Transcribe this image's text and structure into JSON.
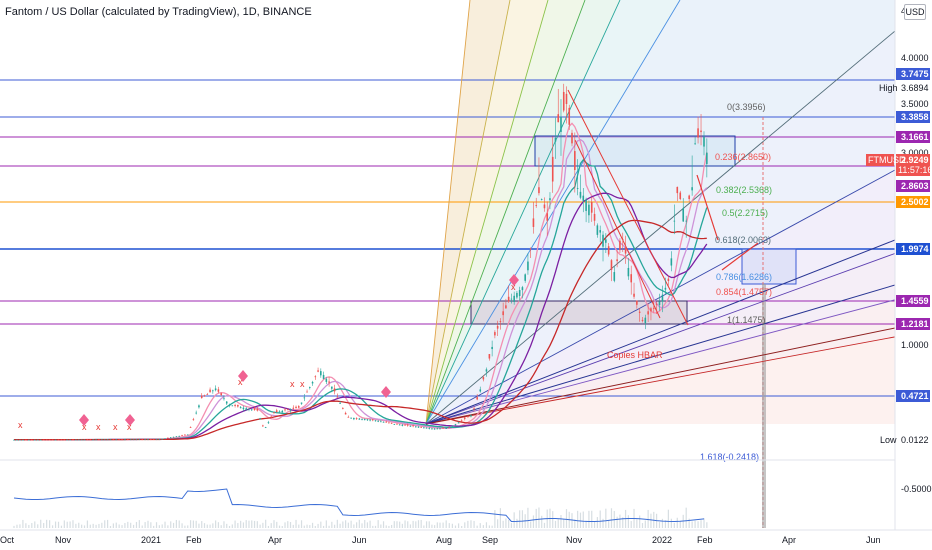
{
  "title": "Fantom / US Dollar (calculated by TradingView), 1D, BINANCE",
  "currency_button": "USD",
  "chart_data": {
    "type": "line",
    "symbol": "FTMUSD",
    "scale": "log",
    "current_price": 2.9249,
    "countdown": "11:57:16",
    "time_axis": [
      "Oct",
      "Nov",
      "2021",
      "Feb",
      "Apr",
      "Jun",
      "Aug",
      "Sep",
      "Nov",
      "2022",
      "Feb",
      "Apr",
      "Jun"
    ],
    "price_axis_ticks": [
      "4.",
      "4.0000",
      "3.6894",
      "3.5000",
      "3.0000",
      "1.0000",
      "0.0122",
      "-0.5000"
    ],
    "price_labels": [
      {
        "value": "3.7475",
        "color": "#3c5bd6"
      },
      {
        "value": "3.3858",
        "color": "#3c5bd6"
      },
      {
        "value": "3.1661",
        "color": "#9c27b0"
      },
      {
        "value": "2.9249",
        "color": "#ef5350"
      },
      {
        "value": "2.8603",
        "color": "#9c27b0"
      },
      {
        "value": "2.5002",
        "color": "#ff9800"
      },
      {
        "value": "1.9974",
        "color": "#1e50d2"
      },
      {
        "value": "1.4559",
        "color": "#9c27b0"
      },
      {
        "value": "1.2181",
        "color": "#9c27b0"
      },
      {
        "value": "0.4721",
        "color": "#3c5bd6"
      }
    ],
    "high_label": "High",
    "low_label": "Low",
    "fib_levels": [
      {
        "ratio": "0",
        "value": "3.3956"
      },
      {
        "ratio": "0.236",
        "value": "2.8650"
      },
      {
        "ratio": "0.382",
        "value": "2.5368"
      },
      {
        "ratio": "0.5",
        "value": "2.2715"
      },
      {
        "ratio": "0.618",
        "value": "2.0063"
      },
      {
        "ratio": "0.786",
        "value": "1.6286"
      },
      {
        "ratio": "0.854",
        "value": "1.4757"
      },
      {
        "ratio": "1",
        "value": "1.1475"
      },
      {
        "ratio": "1.618",
        "value": "-0.2418"
      }
    ],
    "annotation": "Copies HBAR",
    "colors": {
      "up": "#26a69a",
      "down": "#ef5350",
      "ma": "#b71c1c"
    }
  }
}
